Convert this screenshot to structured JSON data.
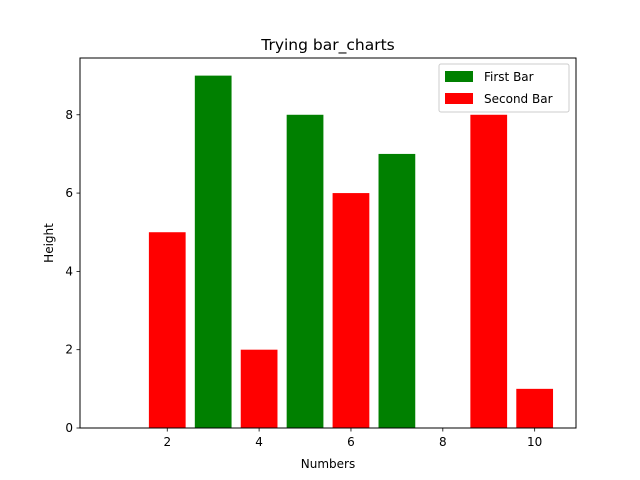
{
  "chart_data": {
    "type": "bar",
    "title": "Trying bar_charts",
    "xlabel": "Numbers",
    "ylabel": "Height",
    "xlim": [
      0.1,
      10.9
    ],
    "ylim": [
      0,
      9.45
    ],
    "xticks": [
      2,
      4,
      6,
      8,
      10
    ],
    "yticks": [
      0,
      2,
      4,
      6,
      8
    ],
    "grid": false,
    "legend_position": "top-right",
    "series": [
      {
        "name": "First Bar",
        "color": "#008000",
        "x": [
          3,
          5,
          7
        ],
        "values": [
          9,
          8,
          7
        ]
      },
      {
        "name": "Second Bar",
        "color": "#ff0000",
        "x": [
          2,
          4,
          6,
          9,
          10
        ],
        "values": [
          5,
          2,
          6,
          8,
          1
        ]
      }
    ]
  }
}
